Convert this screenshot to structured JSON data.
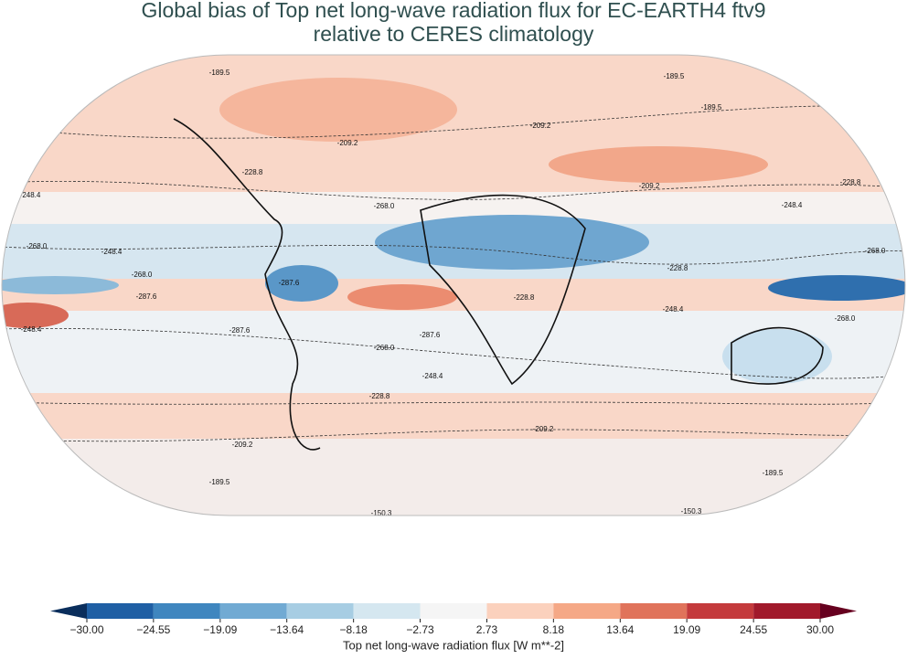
{
  "title": [
    "Global bias of Top net long-wave radiation flux for EC-EARTH4 ftv9",
    "relative to CERES climatology"
  ],
  "contour_labels": [
    "-189.5",
    "-189.5",
    "-189.5",
    "-209.2",
    "-209.2",
    "-209.2",
    "-228.8",
    "-228.8",
    "-248.4",
    "-248.4",
    "-268.0",
    "-268.0",
    "-268.0",
    "-287.6",
    "-287.6",
    "-248.4",
    "-248.4",
    "-268.0",
    "-287.6",
    "-248.4",
    "-228.8",
    "-209.2",
    "-209.2",
    "-189.5",
    "-189.5",
    "-150.3",
    "-150.3",
    "-228.8",
    "-248.4",
    "-268.0",
    "-228.8",
    "-268.0",
    "-287.6"
  ],
  "colorbar": {
    "label": "Top net long-wave radiation flux [W m**-2]",
    "ticks": [
      {
        "value": -30,
        "label": "−30.00"
      },
      {
        "value": -24.55,
        "label": "−24.55"
      },
      {
        "value": -19.09,
        "label": "−19.09"
      },
      {
        "value": -13.64,
        "label": "−13.64"
      },
      {
        "value": -8.18,
        "label": "−8.18"
      },
      {
        "value": -2.73,
        "label": "−2.73"
      },
      {
        "value": 2.73,
        "label": "2.73"
      },
      {
        "value": 8.18,
        "label": "8.18"
      },
      {
        "value": 13.64,
        "label": "13.64"
      },
      {
        "value": 19.09,
        "label": "19.09"
      },
      {
        "value": 24.55,
        "label": "24.55"
      },
      {
        "value": 30,
        "label": "30.00"
      }
    ],
    "colors": [
      "#1f5fa4",
      "#3f86bf",
      "#71aad3",
      "#a7cde3",
      "#d5e7f0",
      "#f5f5f5",
      "#fbd1bd",
      "#f5a886",
      "#e0735b",
      "#c43a3c",
      "#a1192b"
    ],
    "extend_colors": [
      "#0a2e5c",
      "#66001f"
    ]
  }
}
